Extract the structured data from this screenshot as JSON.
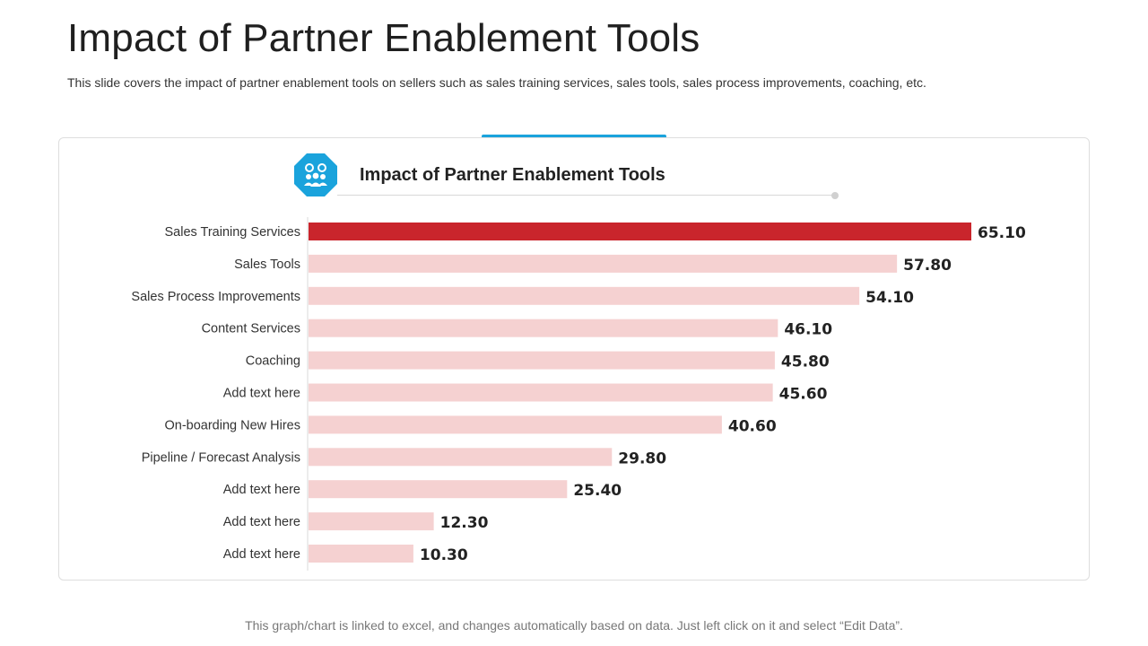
{
  "slide": {
    "title": "Impact of Partner Enablement Tools",
    "subtitle": "This slide covers the impact of partner enablement tools on sellers such as sales training services, sales tools, sales process improvements, coaching, etc.",
    "footer": "This graph/chart is linked to excel, and changes automatically based on data.  Just left click on it and select “Edit Data”."
  },
  "badge": {
    "icon": "team-gears-icon",
    "color": "#1aa3dc"
  },
  "colors": {
    "highlight": "#c9252c",
    "bar": "#f5d1d1",
    "accent": "#1aa3dc"
  },
  "chart_data": {
    "type": "bar",
    "orientation": "horizontal",
    "title": "Impact of Partner Enablement Tools",
    "categories": [
      "Sales Training Services",
      "Sales Tools",
      "Sales Process Improvements",
      "Content Services",
      "Coaching",
      "Add text here",
      "On-boarding New Hires",
      "Pipeline / Forecast Analysis",
      "Add text here",
      "Add text here",
      "Add text here"
    ],
    "values": [
      65.1,
      57.8,
      54.1,
      46.1,
      45.8,
      45.6,
      40.6,
      29.8,
      25.4,
      12.3,
      10.3
    ],
    "value_labels": [
      "65.10",
      "57.80",
      "54.10",
      "46.10",
      "45.80",
      "45.60",
      "40.60",
      "29.80",
      "25.40",
      "12.30",
      "10.30"
    ],
    "highlight_index": 0,
    "xlim": [
      0,
      65.1
    ],
    "xlabel": "",
    "ylabel": "",
    "grid": false,
    "legend": false
  }
}
